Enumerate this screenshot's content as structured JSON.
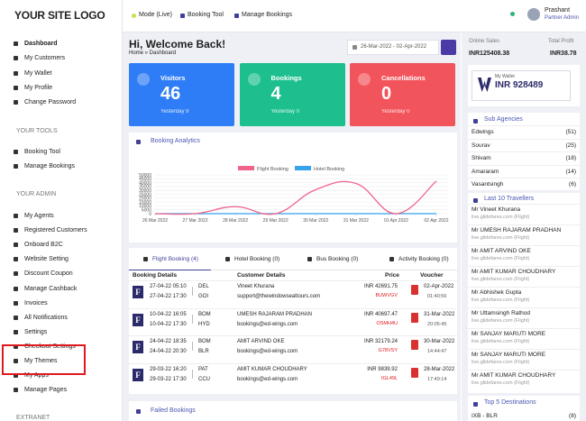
{
  "sidebar": {
    "logo": "YOUR SITE LOGO",
    "menu": [
      "Dashboard",
      "My Customers",
      "My Wallet",
      "My Profile",
      "Change Password"
    ],
    "tools_heading": "YOUR TOOLS",
    "tools": [
      "Booking Tool",
      "Manage Bookings"
    ],
    "admin_heading": "YOUR ADMIN",
    "admin": [
      "My Agents",
      "Registered Customers",
      "Onboard B2C",
      "Website Setting",
      "Discount Coupon",
      "Manage Cashback",
      "Invoices",
      "All Notifications",
      "Settings",
      "Checkout Settings",
      "My Themes",
      "My Apps",
      "Manage Pages"
    ],
    "extranet_heading": "EXTRANET"
  },
  "topbar": {
    "links": [
      "Mode (Live)",
      "Booking Tool",
      "Manage Bookings"
    ],
    "user_name": "Prashant",
    "user_role": "Partner Admin"
  },
  "header": {
    "title": "Hi, Welcome Back!",
    "breadcrumb": "Home » Dashboard",
    "date_range": "26-Mar-2022 - 02-Apr-2022"
  },
  "cards": [
    {
      "label": "Visitors",
      "value": 46,
      "sub": "Yesterday 9",
      "color": "#2f7df6"
    },
    {
      "label": "Bookings",
      "value": 4,
      "sub": "Yesterday 0",
      "color": "#1dbf8e"
    },
    {
      "label": "Cancellations",
      "value": 0,
      "sub": "Yesterday 0",
      "color": "#f2545b"
    }
  ],
  "chart_data": {
    "type": "line",
    "title": "Booking Analytics",
    "categories": [
      "26 Mar 2022",
      "27 Mar 2022",
      "28 Mar 2022",
      "29 Mar 2022",
      "30 Mar 2022",
      "31 Mar 2022",
      "01 Apr 2022",
      "02 Apr 2022"
    ],
    "series": [
      {
        "name": "Flight Booking",
        "color": "#f0648c",
        "values": [
          0,
          0,
          9000,
          0,
          31000,
          39000,
          0,
          42000
        ]
      },
      {
        "name": "Hotel Booking",
        "color": "#36a2eb",
        "values": [
          0,
          0,
          0,
          0,
          0,
          0,
          0,
          0
        ]
      }
    ],
    "ylim": [
      0,
      50000
    ],
    "yticks": [
      0,
      5000,
      10000,
      15000,
      20000,
      25000,
      30000,
      35000,
      40000,
      45000,
      50000
    ],
    "grid": true,
    "legend": "top"
  },
  "bookings": {
    "tabs": [
      "Flight Booking (4)",
      "Hotel Booking (0)",
      "Bus Booking (0)",
      "Activity Booking (0)"
    ],
    "columns": [
      "Booking Details",
      "Customer Details",
      "Price",
      "Voucher"
    ],
    "rows": [
      {
        "airline": "F",
        "depart": "27-04-22 05:10",
        "arrive": "27-04-22 17:30",
        "from": "DEL",
        "to": "GOI",
        "name": "Vineet Khurana",
        "email": "support@thewindowseattours.com",
        "price": "INR 42691.75",
        "pnr": "BUWVGV",
        "date": "02-Apr-2022",
        "time": "01:40:56"
      },
      {
        "airline": "F",
        "depart": "10-04-22 16:05",
        "arrive": "10-04-22 17:30",
        "from": "BOM",
        "to": "HYD",
        "name": "UMESH RAJARAM PRADHAN",
        "email": "bookings@ed-wings.com",
        "price": "INR 40697.47",
        "pnr": "OSMH4U",
        "date": "31-Mar-2022",
        "time": "20:05:45"
      },
      {
        "airline": "F",
        "depart": "24-04-22 18:35",
        "arrive": "24-04-22 20:30",
        "from": "BOM",
        "to": "BLR",
        "name": "AMIT ARVIND OKE",
        "email": "bookings@ed-wings.com",
        "price": "INR 32179.24",
        "pnr": "G78VSY",
        "date": "30-Mar-2022",
        "time": "14:44:47"
      },
      {
        "airline": "F",
        "depart": "29-03-22 16:20",
        "arrive": "29-03-22 17:30",
        "from": "PAT",
        "to": "CCU",
        "name": "AMIT KUMAR CHOUDHARY",
        "email": "bookings@ed-wings.com",
        "price": "INR 9839.92",
        "pnr": "IGL49L",
        "date": "28-Mar-2022",
        "time": "17:49:14"
      }
    ]
  },
  "failed_bookings": "Failed Bookings",
  "summary": {
    "sales_label": "Online Sales",
    "sales": "INR125408.38",
    "profit_label": "Total Profit",
    "profit": "INR38.78",
    "wallet_label": "My Wallet",
    "wallet": "INR 928489"
  },
  "sub_agencies": {
    "title": "Sub Agencies",
    "items": [
      {
        "name": "Edwings",
        "count": "(51)"
      },
      {
        "name": "Sourav",
        "count": "(25)"
      },
      {
        "name": "Shivam",
        "count": "(18)"
      },
      {
        "name": "Amararam",
        "count": "(14)"
      },
      {
        "name": "Vasantsingh",
        "count": "(6)"
      }
    ]
  },
  "travellers": {
    "title": "Last 10 Travellers",
    "items": [
      {
        "name": "Mr Vineet Khurana",
        "source": "live.glidefares.com (Flight)"
      },
      {
        "name": "Mr UMESH RAJARAM PRADHAN",
        "source": "live.glidefares.com (Flight)"
      },
      {
        "name": "Mr AMIT ARVIND OKE",
        "source": "live.glidefares.com (Flight)"
      },
      {
        "name": "Mr AMIT KUMAR CHOUDHARY",
        "source": "live.glidefares.com (Flight)"
      },
      {
        "name": "Mr Abhishek Gupta",
        "source": "live.glidefares.com (Flight)"
      },
      {
        "name": "Mr Uttamsingh Rathod",
        "source": "live.glidefares.com (Flight)"
      },
      {
        "name": "Mr SANJAY MARUTI MORE",
        "source": "live.glidefares.com (Flight)"
      },
      {
        "name": "Mr SANJAY MARUTI MORE",
        "source": "live.glidefares.com (Flight)"
      },
      {
        "name": "Mr AMIT KUMAR CHOUDHARY",
        "source": "live.glidefares.com (Flight)"
      }
    ]
  },
  "destinations": {
    "title": "Top 5 Destinations",
    "items": [
      {
        "route": "IXB - BLR",
        "count": "(8)"
      }
    ]
  }
}
